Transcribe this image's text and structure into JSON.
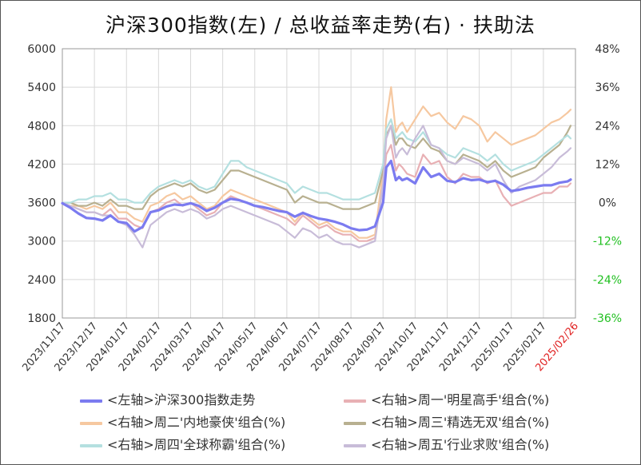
{
  "chart_data": {
    "type": "line",
    "title": "沪深300指数(左)  /  总收益率走势(右) · 扶助法",
    "x_labels": [
      "2023/11/17",
      "2023/12/17",
      "2024/01/17",
      "2024/02/17",
      "2024/03/17",
      "2024/04/17",
      "2024/05/17",
      "2024/06/17",
      "2024/07/17",
      "2024/08/17",
      "2024/09/17",
      "2024/10/17",
      "2024/11/17",
      "2024/12/17",
      "2025/01/17",
      "2025/02/17",
      "2025/02/26"
    ],
    "highlight_label": "2025/02/26",
    "y_left": {
      "ticks": [
        "6000",
        "5400",
        "4800",
        "4200",
        "3600",
        "3000",
        "2400",
        "1800"
      ],
      "range": [
        1800,
        6000
      ]
    },
    "y_right": {
      "ticks": [
        "48%",
        "36%",
        "24%",
        "12%",
        "0%",
        "-12%",
        "-24%",
        "-36%"
      ],
      "range": [
        -36,
        48
      ]
    },
    "series": [
      {
        "name": "<左轴>沪深300指数走势",
        "axis": "left",
        "color": "#7b7bf0",
        "width": 3.2,
        "x": [
          0,
          0.25,
          0.5,
          0.75,
          1,
          1.25,
          1.5,
          1.75,
          2,
          2.25,
          2.5,
          2.75,
          3,
          3.25,
          3.5,
          3.75,
          4,
          4.25,
          4.5,
          4.75,
          5,
          5.25,
          5.5,
          5.75,
          6,
          6.25,
          6.5,
          6.75,
          7,
          7.25,
          7.5,
          7.75,
          8,
          8.25,
          8.5,
          8.75,
          9,
          9.25,
          9.5,
          9.75,
          10,
          10.1,
          10.25,
          10.4,
          10.5,
          10.6,
          10.75,
          11,
          11.25,
          11.5,
          11.75,
          12,
          12.25,
          12.5,
          12.75,
          13,
          13.25,
          13.5,
          13.75,
          14,
          14.25,
          14.5,
          14.75,
          15,
          15.25,
          15.5,
          15.75,
          15.85
        ],
        "y": [
          3590,
          3520,
          3430,
          3360,
          3350,
          3320,
          3400,
          3300,
          3280,
          3150,
          3220,
          3450,
          3480,
          3540,
          3570,
          3560,
          3590,
          3550,
          3470,
          3520,
          3600,
          3660,
          3640,
          3600,
          3550,
          3530,
          3500,
          3470,
          3450,
          3380,
          3440,
          3390,
          3350,
          3330,
          3300,
          3260,
          3200,
          3170,
          3180,
          3230,
          3600,
          4150,
          4250,
          3950,
          4000,
          3950,
          3980,
          3900,
          4150,
          4000,
          4050,
          3940,
          3920,
          3980,
          3950,
          3960,
          3920,
          3940,
          3880,
          3780,
          3800,
          3830,
          3850,
          3870,
          3870,
          3910,
          3930,
          3960
        ]
      },
      {
        "name": "<右轴>周一'明星高手'组合(%)",
        "axis": "right",
        "color": "#e8b0b4",
        "width": 2.2,
        "x": [
          0,
          0.25,
          0.5,
          0.75,
          1,
          1.25,
          1.5,
          1.75,
          2,
          2.25,
          2.5,
          2.75,
          3,
          3.25,
          3.5,
          3.75,
          4,
          4.25,
          4.5,
          4.75,
          5,
          5.25,
          5.5,
          5.75,
          6,
          6.25,
          6.5,
          6.75,
          7,
          7.25,
          7.5,
          7.75,
          8,
          8.25,
          8.5,
          8.75,
          9,
          9.25,
          9.5,
          9.75,
          10,
          10.1,
          10.25,
          10.4,
          10.5,
          10.6,
          10.75,
          11,
          11.25,
          11.5,
          11.75,
          12,
          12.25,
          12.5,
          12.75,
          13,
          13.25,
          13.5,
          13.75,
          14,
          14.25,
          14.5,
          14.75,
          15,
          15.25,
          15.5,
          15.75,
          15.85
        ],
        "y": [
          0,
          -1,
          -2,
          -3,
          -3,
          -4,
          -2,
          -5,
          -5,
          -7,
          -8,
          -3,
          -2,
          0,
          1,
          -1,
          0,
          -2,
          -4,
          -3,
          0,
          2,
          1,
          0,
          -1,
          -2,
          -3,
          -4,
          -5,
          -7,
          -4,
          -6,
          -8,
          -7,
          -9,
          -10,
          -10,
          -12,
          -12,
          -11,
          5,
          15,
          18,
          10,
          12,
          11,
          9,
          8,
          15,
          12,
          13,
          8,
          6,
          9,
          8,
          8,
          6,
          7,
          2,
          -1,
          0,
          1,
          2,
          3,
          3,
          5,
          5,
          6
        ]
      },
      {
        "name": "<右轴>周二'内地豪侠'组合(%)",
        "axis": "right",
        "color": "#f6c8a0",
        "width": 2.2,
        "x": [
          0,
          0.25,
          0.5,
          0.75,
          1,
          1.25,
          1.5,
          1.75,
          2,
          2.25,
          2.5,
          2.75,
          3,
          3.25,
          3.5,
          3.75,
          4,
          4.25,
          4.5,
          4.75,
          5,
          5.25,
          5.5,
          5.75,
          6,
          6.25,
          6.5,
          6.75,
          7,
          7.25,
          7.5,
          7.75,
          8,
          8.25,
          8.5,
          8.75,
          9,
          9.25,
          9.5,
          9.75,
          10,
          10.1,
          10.25,
          10.4,
          10.5,
          10.6,
          10.75,
          11,
          11.25,
          11.5,
          11.75,
          12,
          12.25,
          12.5,
          12.75,
          13,
          13.25,
          13.5,
          13.75,
          14,
          14.25,
          14.5,
          14.75,
          15,
          15.25,
          15.5,
          15.75,
          15.85
        ],
        "y": [
          0,
          -1,
          -1,
          -2,
          -1,
          -2,
          0,
          -3,
          -3,
          -5,
          -6,
          -1,
          0,
          2,
          3,
          1,
          2,
          0,
          -2,
          -1,
          2,
          4,
          3,
          2,
          1,
          0,
          -1,
          -2,
          -3,
          -6,
          -3,
          -5,
          -7,
          -6,
          -8,
          -9,
          -9,
          -11,
          -11,
          -10,
          10,
          26,
          36,
          22,
          24,
          25,
          22,
          26,
          30,
          27,
          28,
          25,
          23,
          27,
          26,
          24,
          19,
          22,
          20,
          18,
          19,
          20,
          21,
          23,
          25,
          26,
          28,
          29
        ]
      },
      {
        "name": "<右轴>周三'精选无双'组合(%)",
        "axis": "right",
        "color": "#b8b090",
        "width": 2.2,
        "x": [
          0,
          0.25,
          0.5,
          0.75,
          1,
          1.25,
          1.5,
          1.75,
          2,
          2.25,
          2.5,
          2.75,
          3,
          3.25,
          3.5,
          3.75,
          4,
          4.25,
          4.5,
          4.75,
          5,
          5.25,
          5.5,
          5.75,
          6,
          6.25,
          6.5,
          6.75,
          7,
          7.25,
          7.5,
          7.75,
          8,
          8.25,
          8.5,
          8.75,
          9,
          9.25,
          9.5,
          9.75,
          10,
          10.1,
          10.25,
          10.4,
          10.5,
          10.6,
          10.75,
          11,
          11.25,
          11.5,
          11.75,
          12,
          12.25,
          12.5,
          12.75,
          13,
          13.25,
          13.5,
          13.75,
          14,
          14.25,
          14.5,
          14.75,
          15,
          15.25,
          15.5,
          15.75,
          15.85
        ],
        "y": [
          0,
          0,
          -1,
          -1,
          0,
          -1,
          1,
          -1,
          -1,
          -2,
          -2,
          2,
          4,
          5,
          6,
          5,
          6,
          4,
          3,
          4,
          7,
          10,
          10,
          9,
          8,
          7,
          6,
          5,
          4,
          0,
          2,
          1,
          0,
          0,
          -1,
          -2,
          -2,
          -2,
          -1,
          0,
          10,
          21,
          24,
          18,
          20,
          20,
          18,
          17,
          20,
          17,
          16,
          13,
          12,
          15,
          14,
          13,
          11,
          13,
          10,
          8,
          9,
          10,
          11,
          14,
          16,
          18,
          22,
          24
        ]
      },
      {
        "name": "<右轴>周四'全球称霸'组合(%)",
        "axis": "right",
        "color": "#b4e0e0",
        "width": 2.2,
        "x": [
          0,
          0.25,
          0.5,
          0.75,
          1,
          1.25,
          1.5,
          1.75,
          2,
          2.25,
          2.5,
          2.75,
          3,
          3.25,
          3.5,
          3.75,
          4,
          4.25,
          4.5,
          4.75,
          5,
          5.25,
          5.5,
          5.75,
          6,
          6.25,
          6.5,
          6.75,
          7,
          7.25,
          7.5,
          7.75,
          8,
          8.25,
          8.5,
          8.75,
          9,
          9.25,
          9.5,
          9.75,
          10,
          10.1,
          10.25,
          10.4,
          10.5,
          10.6,
          10.75,
          11,
          11.25,
          11.5,
          11.75,
          12,
          12.25,
          12.5,
          12.75,
          13,
          13.25,
          13.5,
          13.75,
          14,
          14.25,
          14.5,
          14.75,
          15,
          15.25,
          15.5,
          15.75,
          15.85
        ],
        "y": [
          0,
          0,
          1,
          1,
          2,
          2,
          3,
          1,
          1,
          0,
          0,
          3,
          5,
          6,
          7,
          6,
          7,
          5,
          4,
          5,
          9,
          13,
          13,
          11,
          10,
          9,
          8,
          7,
          6,
          3,
          5,
          4,
          3,
          3,
          2,
          1,
          1,
          1,
          2,
          3,
          12,
          23,
          26,
          20,
          21,
          22,
          20,
          19,
          22,
          18,
          17,
          15,
          14,
          17,
          16,
          15,
          13,
          15,
          12,
          10,
          11,
          12,
          13,
          15,
          17,
          19,
          21,
          20
        ]
      },
      {
        "name": "<右轴>周五'行业求败'组合(%)",
        "axis": "right",
        "color": "#c8bcd8",
        "width": 2.2,
        "x": [
          0,
          0.25,
          0.5,
          0.75,
          1,
          1.25,
          1.5,
          1.75,
          2,
          2.25,
          2.5,
          2.75,
          3,
          3.25,
          3.5,
          3.75,
          4,
          4.25,
          4.5,
          4.75,
          5,
          5.25,
          5.5,
          5.75,
          6,
          6.25,
          6.5,
          6.75,
          7,
          7.25,
          7.5,
          7.75,
          8,
          8.25,
          8.5,
          8.75,
          9,
          9.25,
          9.5,
          9.75,
          10,
          10.1,
          10.25,
          10.4,
          10.5,
          10.6,
          10.75,
          11,
          11.25,
          11.5,
          11.75,
          12,
          12.25,
          12.5,
          12.75,
          13,
          13.25,
          13.5,
          13.75,
          14,
          14.25,
          14.5,
          14.75,
          15,
          15.25,
          15.5,
          15.75,
          15.85
        ],
        "y": [
          0,
          -1,
          -2,
          -3,
          -3,
          -4,
          -4,
          -6,
          -7,
          -10,
          -14,
          -7,
          -5,
          -3,
          -2,
          -3,
          -2,
          -3,
          -5,
          -4,
          -2,
          -1,
          -2,
          -3,
          -4,
          -5,
          -6,
          -7,
          -9,
          -11,
          -8,
          -9,
          -11,
          -10,
          -12,
          -13,
          -13,
          -14,
          -13,
          -12,
          6,
          20,
          24,
          14,
          16,
          17,
          15,
          20,
          24,
          18,
          17,
          13,
          12,
          14,
          13,
          12,
          10,
          12,
          7,
          3,
          5,
          6,
          7,
          9,
          11,
          14,
          16,
          17
        ]
      }
    ]
  }
}
